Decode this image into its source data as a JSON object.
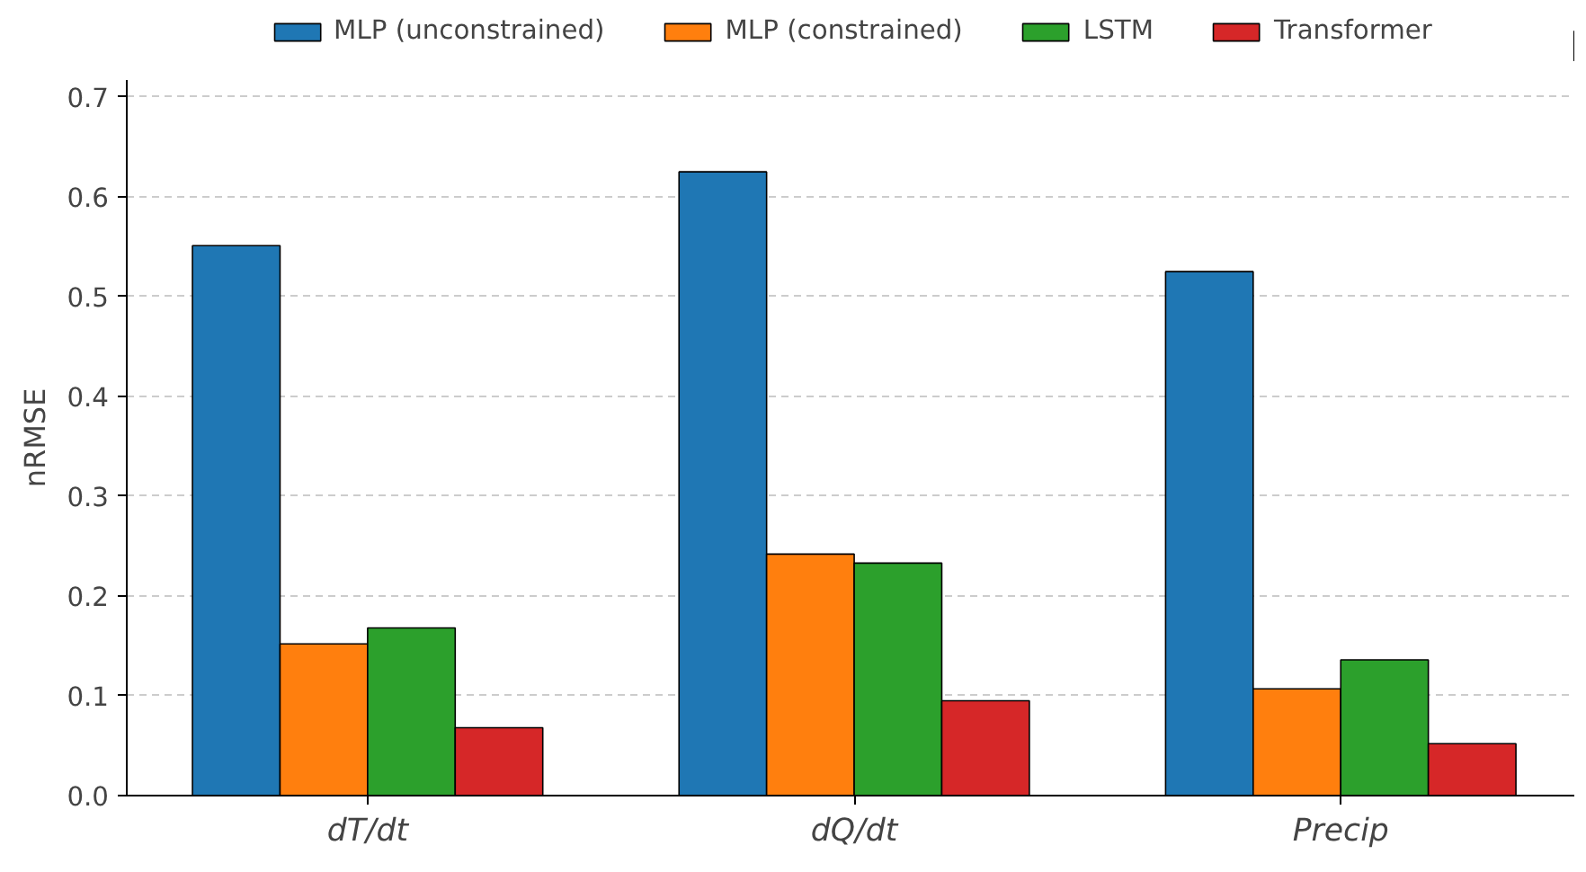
{
  "chart_data": {
    "type": "bar",
    "ylabel": "nRMSE",
    "categories": [
      "dT/dt",
      "dQ/dt",
      "Precip"
    ],
    "series": [
      {
        "name": "MLP (unconstrained)",
        "color": "#1f77b4",
        "values": [
          0.551,
          0.625,
          0.525
        ]
      },
      {
        "name": "MLP (constrained)",
        "color": "#ff7f0e",
        "values": [
          0.152,
          0.242,
          0.107
        ]
      },
      {
        "name": "LSTM",
        "color": "#2ca02c",
        "values": [
          0.168,
          0.233,
          0.136
        ]
      },
      {
        "name": "Transformer",
        "color": "#d62728",
        "values": [
          0.068,
          0.095,
          0.052
        ]
      }
    ],
    "ylim": [
      0,
      0.717
    ],
    "yticks": [
      {
        "value": 0,
        "label": "0.0"
      },
      0.1,
      0.2,
      0.3,
      0.4,
      0.5,
      0.6,
      0.7
    ],
    "grid": "y",
    "legend": "top"
  }
}
